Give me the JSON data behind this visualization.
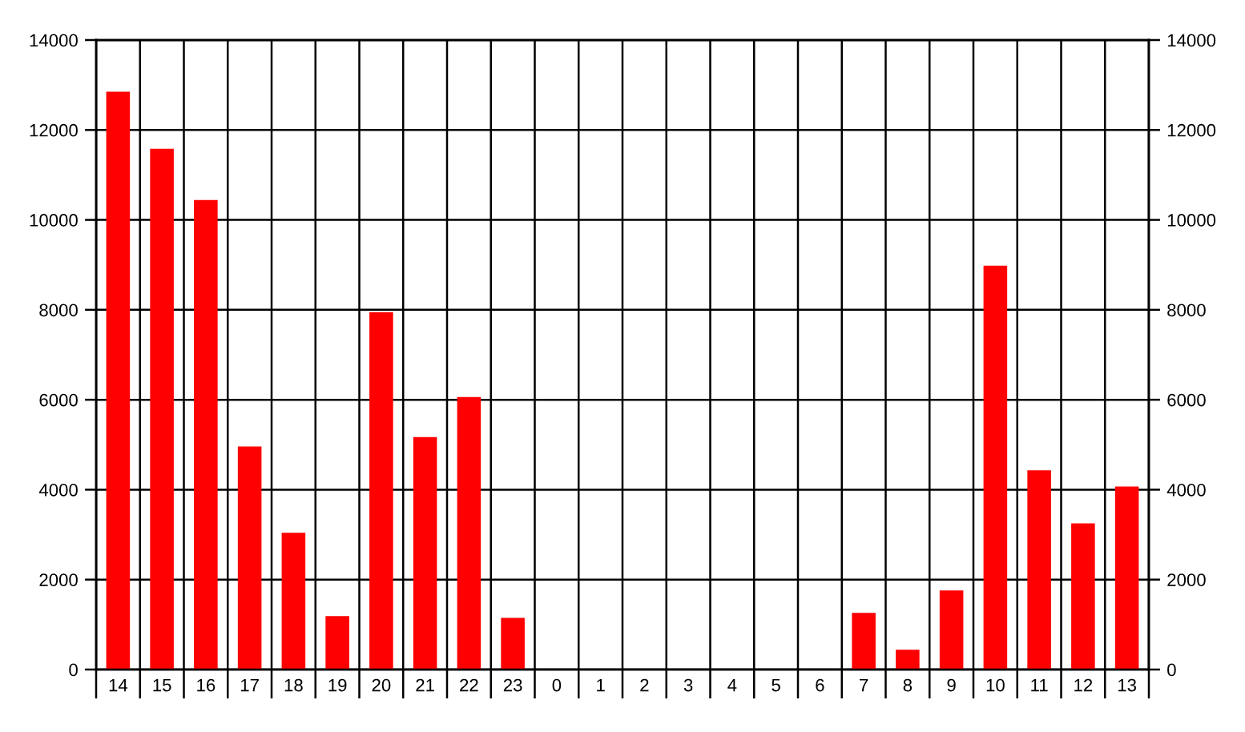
{
  "chart_data": {
    "type": "bar",
    "categories": [
      "14",
      "15",
      "16",
      "17",
      "18",
      "19",
      "20",
      "21",
      "22",
      "23",
      "0",
      "1",
      "2",
      "3",
      "4",
      "5",
      "6",
      "7",
      "8",
      "9",
      "10",
      "11",
      "12",
      "13"
    ],
    "values": [
      12850,
      11580,
      10440,
      4960,
      3040,
      1190,
      7950,
      5170,
      6060,
      1150,
      0,
      0,
      0,
      0,
      0,
      0,
      0,
      1260,
      440,
      1760,
      8980,
      4430,
      3250,
      4070
    ],
    "color": "#ff0000",
    "ylim": [
      0,
      14000
    ],
    "yticks": [
      0,
      2000,
      4000,
      6000,
      8000,
      10000,
      12000,
      14000
    ],
    "y2lim": [
      0,
      14000
    ],
    "y2ticks": [
      0,
      2000,
      4000,
      6000,
      8000,
      10000,
      12000,
      14000
    ],
    "grid": true
  }
}
